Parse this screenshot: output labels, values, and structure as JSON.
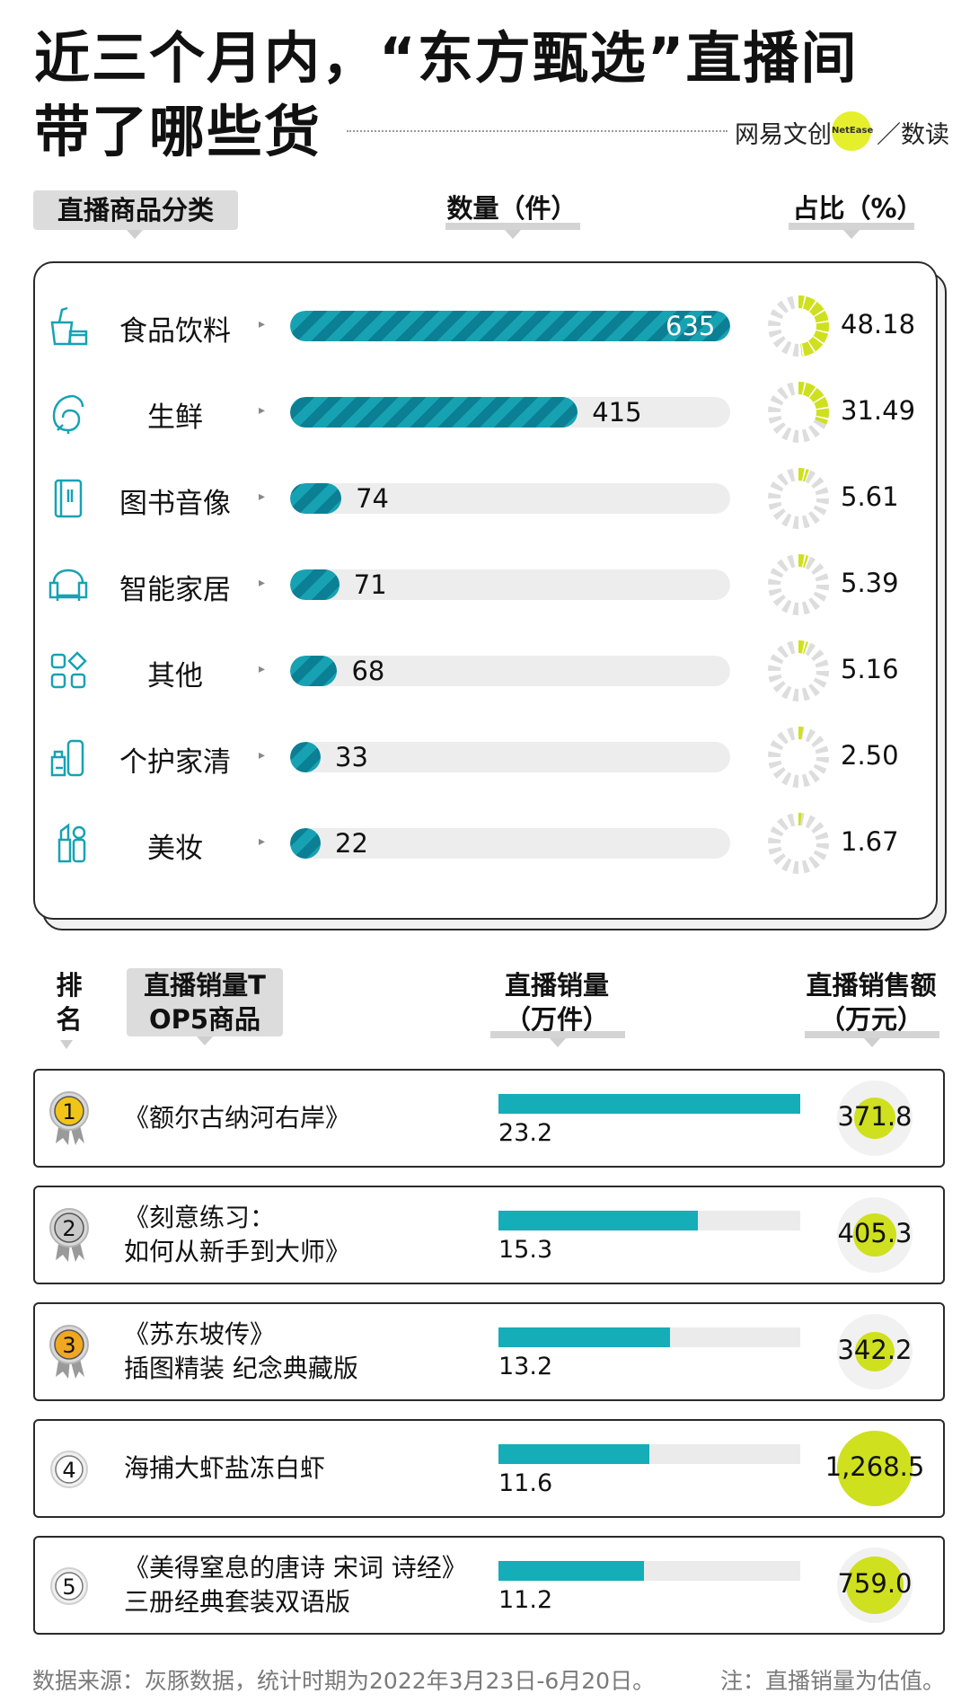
{
  "title": {
    "line1": "近三个月内，“东方甄选”直播间",
    "line2": "带了哪些货",
    "logo_brand": "网易文创",
    "logo_badge": "NetEase",
    "logo_sub": "／数读"
  },
  "section1": {
    "headers": {
      "category": "直播商品分类",
      "count": "数量（件）",
      "share": "占比（%）"
    }
  },
  "section2": {
    "headers": {
      "rank": "排名",
      "product": "直播销量TOP5商品",
      "volume": "直播销量（万件）",
      "revenue": "直播销售额（万元）"
    }
  },
  "chart_data": [
    {
      "type": "bar",
      "categories": [
        "食品饮料",
        "生鲜",
        "图书音像",
        "智能家居",
        "其他",
        "个护家清",
        "美妆"
      ],
      "icons": [
        "drink-food-icon",
        "shrimp-icon",
        "book-icon",
        "sofa-icon",
        "grid-shapes-icon",
        "bottle-icon",
        "lipstick-icon"
      ],
      "series": [
        {
          "name": "数量（件）",
          "values": [
            635,
            415,
            74,
            71,
            68,
            33,
            22
          ]
        },
        {
          "name": "占比（%）",
          "values": [
            48.18,
            31.49,
            5.61,
            5.39,
            5.16,
            2.5,
            1.67
          ],
          "labels": [
            "48.18",
            "31.49",
            "5.61",
            "5.39",
            "5.16",
            "2.50",
            "1.67"
          ]
        }
      ],
      "colors": {
        "bar": "#17a2b3",
        "bar_stripe": "#0b7f93",
        "track": "#ededed",
        "donut": "#cfe01e",
        "donut_track": "#dddddd"
      }
    },
    {
      "type": "bar",
      "ranks": [
        "1",
        "2",
        "3",
        "4",
        "5"
      ],
      "categories": [
        [
          "《额尔古纳河右岸》"
        ],
        [
          "《刻意练习：",
          "如何从新手到大师》"
        ],
        [
          "《苏东坡传》",
          "插图精装 纪念典藏版"
        ],
        [
          "海捕大虾盐冻白虾"
        ],
        [
          "《美得窒息的唐诗 宋词 诗经》",
          "三册经典套装双语版"
        ]
      ],
      "series": [
        {
          "name": "直播销量（万件）",
          "values": [
            23.2,
            15.3,
            13.2,
            11.6,
            11.2
          ],
          "labels": [
            "23.2",
            "15.3",
            "13.2",
            "11.6",
            "11.2"
          ]
        },
        {
          "name": "直播销售额（万元）",
          "values": [
            371.8,
            405.3,
            342.2,
            1268.5,
            759.0
          ],
          "labels": [
            "371.8",
            "405.3",
            "342.2",
            "1,268.5",
            "759.0"
          ]
        }
      ],
      "medals": [
        "gold",
        "silver",
        "bronze",
        "plain",
        "plain"
      ],
      "colors": {
        "bar": "#15adb8",
        "track": "#ebebeb",
        "bubble": "#cfe01e",
        "gold": "#f2c418",
        "silver": "#c8c8c8",
        "bronze": "#f0a820"
      }
    }
  ],
  "footer": {
    "source": "数据来源：灰豚数据，统计时期为2022年3月23日-6月20日。",
    "note": "注：直播销量为估值。"
  }
}
